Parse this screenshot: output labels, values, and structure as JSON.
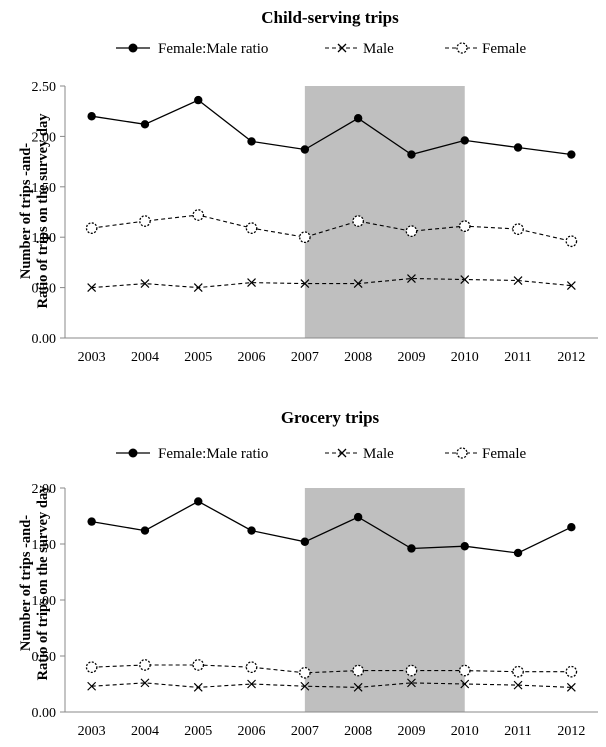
{
  "legend": {
    "ratio": "Female:Male ratio",
    "male": "Male",
    "female": "Female"
  },
  "ylabel": {
    "line1": "Number of trips -and-",
    "line2": "Ratio of trips on the survey day"
  },
  "chart_data": [
    {
      "type": "line",
      "title": "Child-serving trips",
      "xlabel": "",
      "ylabel": "Number of trips -and- Ratio of trips on the survey day",
      "categories": [
        "2003",
        "2004",
        "2005",
        "2006",
        "2007",
        "2008",
        "2009",
        "2010",
        "2011",
        "2012"
      ],
      "yticks": [
        "0.00",
        "0.50",
        "1.00",
        "1.50",
        "2.00",
        "2.50"
      ],
      "ylim": [
        0,
        2.5
      ],
      "shaded_range": [
        "2007",
        "2010"
      ],
      "shade_color": "#bfbfbf",
      "legend_position": "top",
      "grid": false,
      "series": [
        {
          "name": "Female:Male ratio",
          "style": "solid",
          "marker": "filled-circle",
          "values": [
            2.2,
            2.12,
            2.36,
            1.95,
            1.87,
            2.18,
            1.82,
            1.96,
            1.89,
            1.82
          ]
        },
        {
          "name": "Male",
          "style": "dashed",
          "marker": "x",
          "values": [
            0.5,
            0.54,
            0.5,
            0.55,
            0.54,
            0.54,
            0.59,
            0.58,
            0.57,
            0.52
          ]
        },
        {
          "name": "Female",
          "style": "dashed",
          "marker": "open-circle",
          "values": [
            1.09,
            1.16,
            1.22,
            1.09,
            1.0,
            1.16,
            1.06,
            1.11,
            1.08,
            0.96
          ]
        }
      ]
    },
    {
      "type": "line",
      "title": "Grocery trips",
      "xlabel": "",
      "ylabel": "Number of trips -and- Ratio of trips on the survey day",
      "categories": [
        "2003",
        "2004",
        "2005",
        "2006",
        "2007",
        "2008",
        "2009",
        "2010",
        "2011",
        "2012"
      ],
      "yticks": [
        "0.00",
        "0.50",
        "1.00",
        "1.50",
        "2.00"
      ],
      "ylim": [
        0,
        2.0
      ],
      "shaded_range": [
        "2007",
        "2010"
      ],
      "shade_color": "#bfbfbf",
      "legend_position": "top",
      "grid": false,
      "series": [
        {
          "name": "Female:Male ratio",
          "style": "solid",
          "marker": "filled-circle",
          "values": [
            1.7,
            1.62,
            1.88,
            1.62,
            1.52,
            1.74,
            1.46,
            1.48,
            1.42,
            1.65
          ]
        },
        {
          "name": "Male",
          "style": "dashed",
          "marker": "x",
          "values": [
            0.23,
            0.26,
            0.22,
            0.25,
            0.23,
            0.22,
            0.26,
            0.25,
            0.24,
            0.22
          ]
        },
        {
          "name": "Female",
          "style": "dashed",
          "marker": "open-circle",
          "values": [
            0.4,
            0.42,
            0.42,
            0.4,
            0.35,
            0.37,
            0.37,
            0.37,
            0.36,
            0.36
          ]
        }
      ]
    }
  ]
}
